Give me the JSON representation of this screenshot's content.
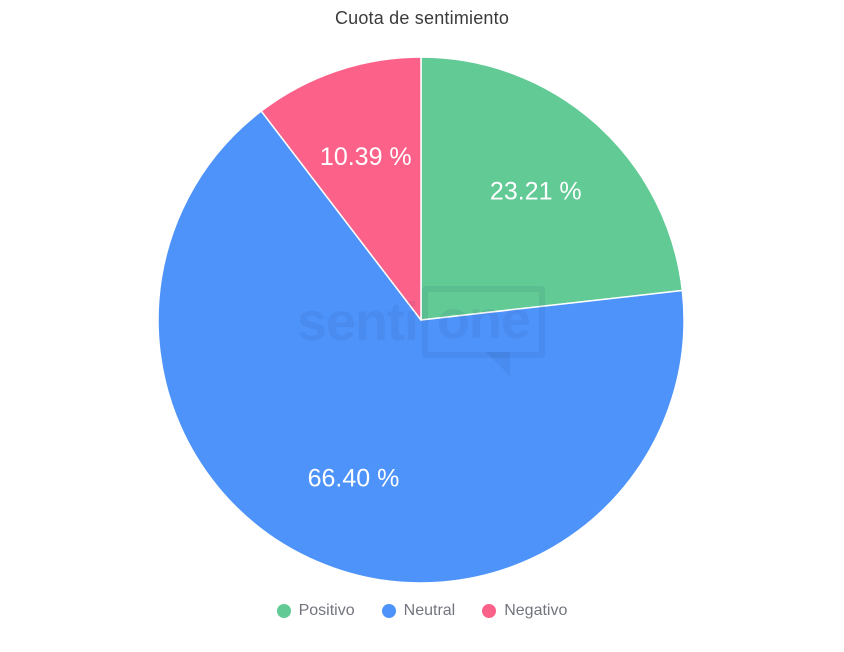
{
  "page": {
    "background": "#ffffff"
  },
  "chart_data": {
    "type": "pie",
    "title": "Cuota de sentimiento",
    "title_color": "#3b3b3b",
    "legend_position": "bottom",
    "legend_text_color": "#73757e",
    "start_angle": "top",
    "direction": "clockwise",
    "slice_label_color": "#ffffff",
    "slices": [
      {
        "label": "Positivo",
        "value": 23.21,
        "display_label": "23.21 %",
        "color": "#61ca95"
      },
      {
        "label": "Neutral",
        "value": 66.4,
        "display_label": "66.40 %",
        "color": "#4d93fa"
      },
      {
        "label": "Negativo",
        "value": 10.39,
        "display_label": "10.39 %",
        "color": "#fb6189"
      }
    ]
  },
  "watermark": {
    "text": "senti",
    "boxed_text": "one"
  }
}
